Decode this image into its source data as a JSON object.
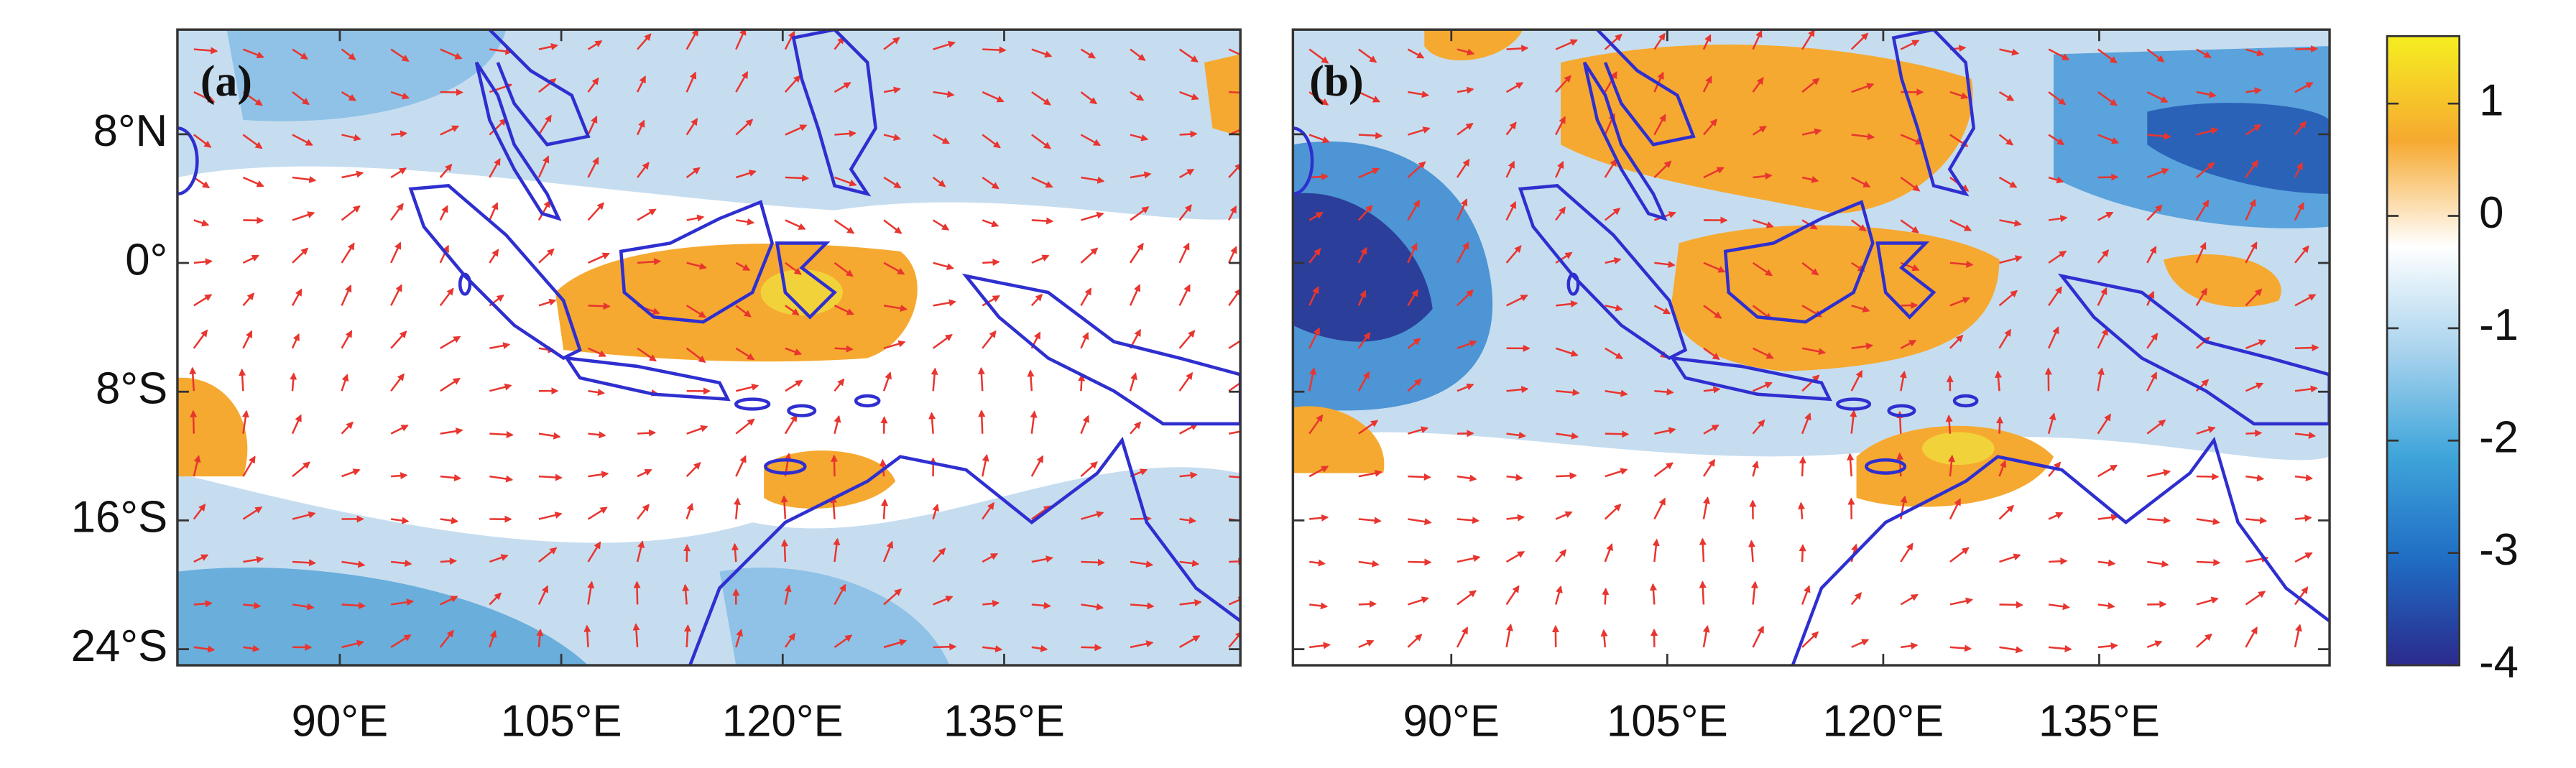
{
  "panels": [
    {
      "label": "(a)"
    },
    {
      "label": "(b)"
    }
  ],
  "map": {
    "lon_range": [
      79,
      151
    ],
    "lat_range": [
      -25,
      14.5
    ],
    "lon_ticks": [
      {
        "value": 90,
        "label": "90°E"
      },
      {
        "value": 105,
        "label": "105°E"
      },
      {
        "value": 120,
        "label": "120°E"
      },
      {
        "value": 135,
        "label": "135°E"
      }
    ],
    "lat_ticks": [
      {
        "value": 8,
        "label": "8°N"
      },
      {
        "value": 0,
        "label": "0°"
      },
      {
        "value": -8,
        "label": "8°S"
      },
      {
        "value": -16,
        "label": "16°S"
      },
      {
        "value": -24,
        "label": "24°S"
      }
    ]
  },
  "colorbar": {
    "range": [
      -4,
      1.6
    ],
    "ticks": [
      1,
      0,
      -1,
      -2,
      -3,
      -4
    ],
    "colors": [
      "#2b2a8c",
      "#1f6cc4",
      "#3fa5da",
      "#a9d3ee",
      "#ffffff",
      "#f6a930",
      "#f5ee20"
    ]
  }
}
